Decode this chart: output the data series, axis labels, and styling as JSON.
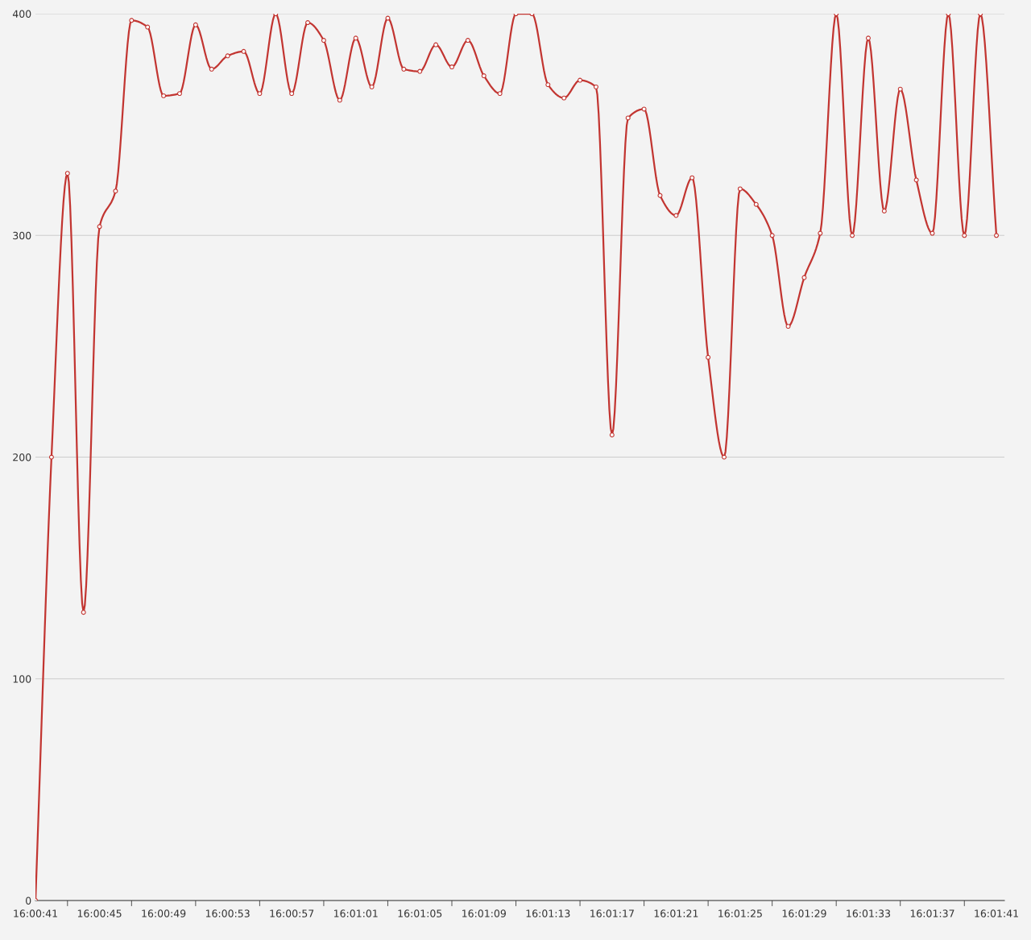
{
  "chart_data": {
    "type": "line",
    "categories": [
      "16:00:41",
      null,
      null,
      null,
      "16:00:45",
      null,
      null,
      null,
      "16:00:49",
      null,
      null,
      null,
      "16:00:53",
      null,
      null,
      null,
      "16:00:57",
      null,
      null,
      null,
      "16:01:01",
      null,
      null,
      null,
      "16:01:05",
      null,
      null,
      null,
      "16:01:09",
      null,
      null,
      null,
      "16:01:13",
      null,
      null,
      null,
      "16:01:17",
      null,
      null,
      null,
      "16:01:21",
      null,
      null,
      null,
      "16:01:25",
      null,
      null,
      null,
      "16:01:29",
      null,
      null,
      null,
      "16:01:33",
      null,
      null,
      null,
      "16:01:37",
      null,
      null,
      null,
      "16:01:41"
    ],
    "series": [
      {
        "color": "#c23531",
        "values": [
          0,
          200,
          328,
          130,
          304,
          320,
          397,
          394,
          363,
          364,
          395,
          375,
          381,
          383,
          364,
          400,
          364,
          396,
          388,
          361,
          389,
          367,
          398,
          375,
          374,
          386,
          376,
          388,
          372,
          364,
          400,
          400,
          368,
          362,
          370,
          367,
          210,
          353,
          357,
          318,
          309,
          326,
          245,
          200,
          321,
          314,
          300,
          259,
          281,
          301,
          400,
          300,
          389,
          311,
          366,
          325,
          301,
          400,
          300,
          400,
          300
        ]
      }
    ],
    "ylim": [
      0,
      400
    ],
    "yticks": [
      0,
      100,
      200,
      300,
      400
    ],
    "grid": "y",
    "marker": "circle",
    "line_style": "solid"
  }
}
